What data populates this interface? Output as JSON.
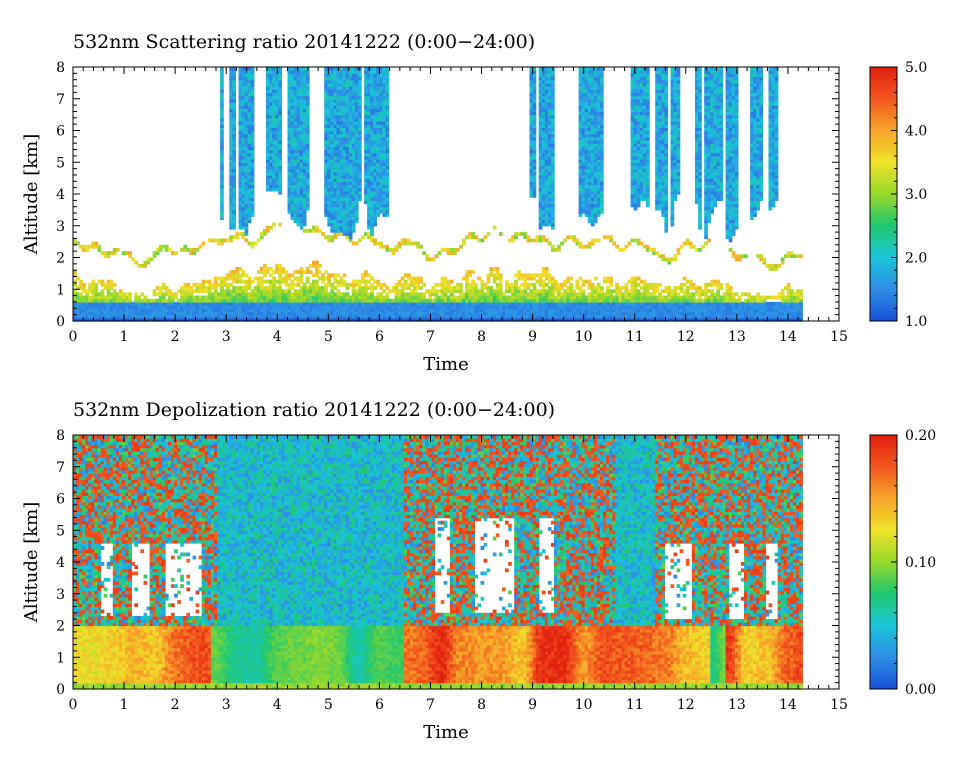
{
  "chart_data": [
    {
      "type": "heatmap",
      "title": "532nm Scattering ratio  20141222 (0:00−24:00)",
      "xlabel": "Time",
      "ylabel": "Altitude [km]",
      "xlim": [
        0,
        15
      ],
      "ylim": [
        0,
        8
      ],
      "xticks": [
        "0",
        "1",
        "2",
        "3",
        "4",
        "5",
        "6",
        "7",
        "8",
        "9",
        "10",
        "11",
        "12",
        "13",
        "14",
        "15"
      ],
      "yticks": [
        "0",
        "1",
        "2",
        "3",
        "4",
        "5",
        "6",
        "7",
        "8"
      ],
      "colorbar": {
        "min": 1.0,
        "max": 5.0,
        "ticks": [
          "1.0",
          "2.0",
          "3.0",
          "4.0",
          "5.0"
        ],
        "tick_values": [
          1.0,
          2.0,
          3.0,
          4.0,
          5.0
        ],
        "colors": [
          "#1a52d8",
          "#2e8ee6",
          "#19c6d8",
          "#22c86e",
          "#9ad82a",
          "#f0e22a",
          "#f7a42a",
          "#f2551e",
          "#e12010"
        ]
      },
      "data_end_hour": 14.25,
      "cloud_base_top_km": [
        [
          0,
          1.7
        ],
        [
          1,
          1.3
        ],
        [
          2,
          1.5
        ],
        [
          3,
          1.8
        ],
        [
          4,
          2.0
        ],
        [
          5,
          2.0
        ],
        [
          6,
          1.7
        ],
        [
          7,
          1.6
        ],
        [
          8,
          1.8
        ],
        [
          9,
          1.9
        ],
        [
          10,
          1.7
        ],
        [
          11,
          1.6
        ],
        [
          12,
          1.5
        ],
        [
          13,
          1.4
        ],
        [
          14,
          1.3
        ]
      ],
      "high_cloud_intervals_hours": [
        [
          2.9,
          4.6
        ],
        [
          4.8,
          6.3
        ],
        [
          8.7,
          9.4
        ],
        [
          9.9,
          10.5
        ],
        [
          10.9,
          11.9
        ],
        [
          12.2,
          13.8
        ]
      ]
    },
    {
      "type": "heatmap",
      "title": "532nm Depolization ratio  20141222 (0:00−24:00)",
      "xlabel": "Time",
      "ylabel": "Altitude [km]",
      "xlim": [
        0,
        15
      ],
      "ylim": [
        0,
        8
      ],
      "xticks": [
        "0",
        "1",
        "2",
        "3",
        "4",
        "5",
        "6",
        "7",
        "8",
        "9",
        "10",
        "11",
        "12",
        "13",
        "14",
        "15"
      ],
      "yticks": [
        "0",
        "1",
        "2",
        "3",
        "4",
        "5",
        "6",
        "7",
        "8"
      ],
      "colorbar": {
        "min": 0.0,
        "max": 0.2,
        "ticks": [
          "0.00",
          "0.10",
          "0.20"
        ],
        "tick_values": [
          0.0,
          0.1,
          0.2
        ],
        "colors": [
          "#1a52d8",
          "#2e8ee6",
          "#19c6d8",
          "#22c86e",
          "#9ad82a",
          "#f0e22a",
          "#f7a42a",
          "#f2551e",
          "#e12010"
        ]
      },
      "data_end_hour": 14.25
    }
  ]
}
